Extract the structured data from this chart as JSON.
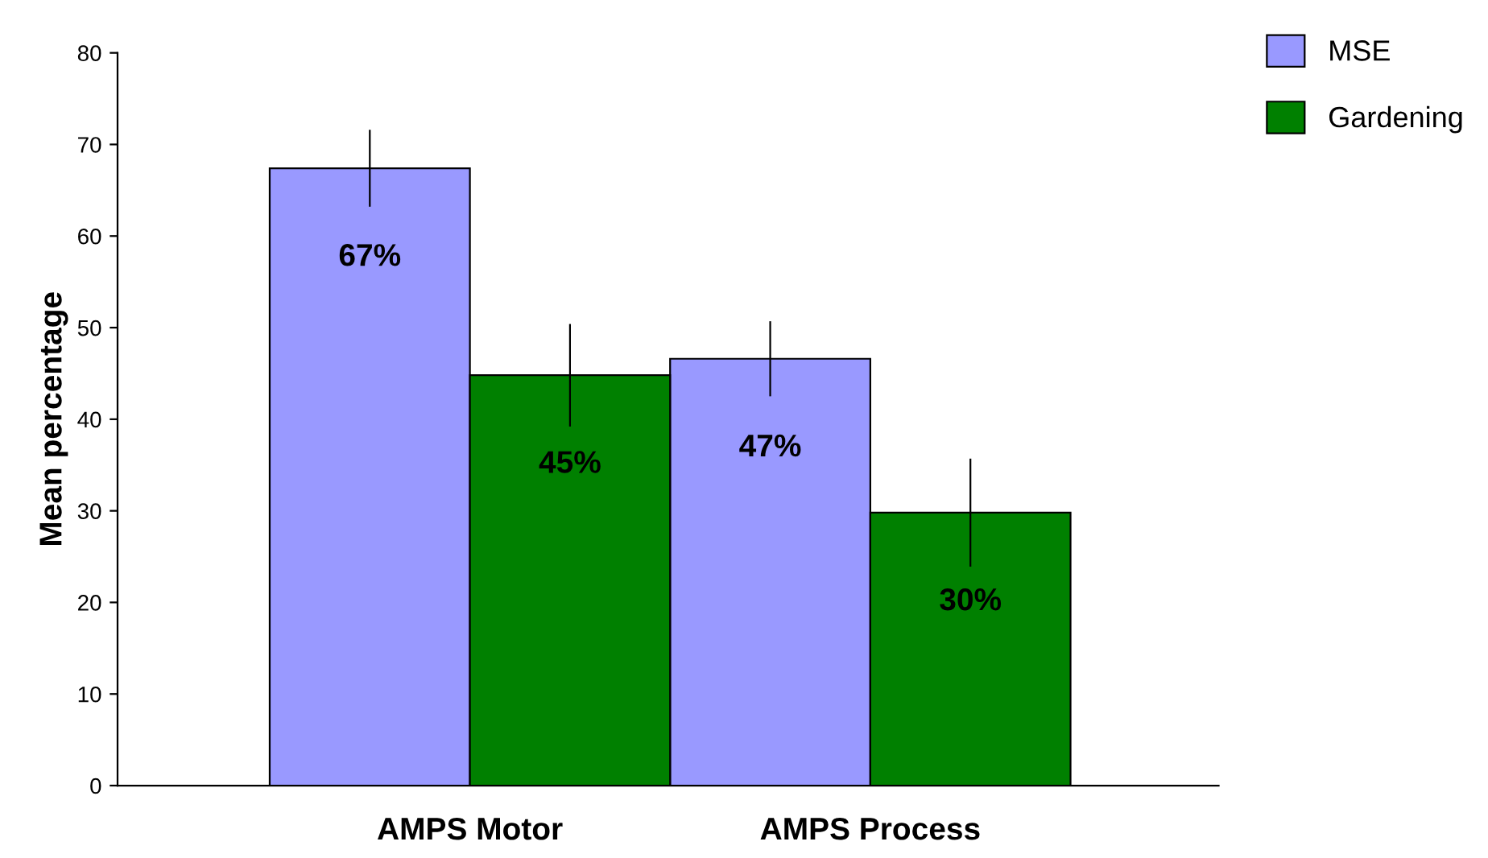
{
  "chart_data": {
    "type": "bar",
    "ylabel": "Mean percentage",
    "categories": [
      "AMPS Motor",
      "AMPS Process"
    ],
    "series": [
      {
        "name": "MSE",
        "color": "#9999ff",
        "values": [
          67.4,
          46.6
        ],
        "errors": [
          4.1,
          4.0
        ],
        "value_labels": [
          "67%",
          "47%"
        ]
      },
      {
        "name": "Gardening",
        "color": "#008000",
        "values": [
          44.8,
          29.8
        ],
        "errors": [
          5.5,
          5.8
        ],
        "value_labels": [
          "45%",
          "30%"
        ]
      }
    ],
    "ylim": [
      0,
      80
    ],
    "yticks": [
      0,
      10,
      20,
      30,
      40,
      50,
      60,
      70,
      80
    ],
    "grid": false,
    "legend": "top right"
  }
}
